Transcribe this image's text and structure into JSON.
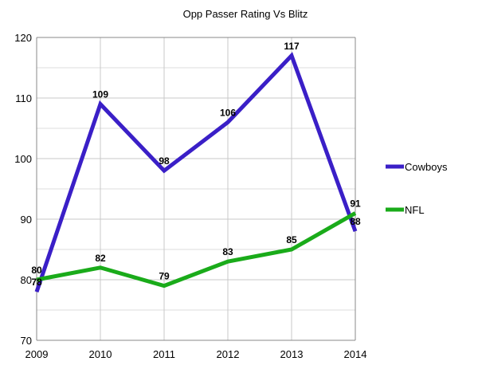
{
  "chart_data": {
    "type": "line",
    "title": "Opp Passer Rating Vs Blitz",
    "xlabel": "",
    "ylabel": "",
    "categories": [
      "2009",
      "2010",
      "2011",
      "2012",
      "2013",
      "2014"
    ],
    "ylim": [
      70,
      120
    ],
    "yticks": [
      70,
      80,
      90,
      100,
      110,
      120
    ],
    "grid": true,
    "legend_position": "right",
    "series": [
      {
        "name": "Cowboys",
        "color": "#3a1fc7",
        "values": [
          78,
          109,
          98,
          106,
          117,
          88
        ]
      },
      {
        "name": "NFL",
        "color": "#1aab1a",
        "values": [
          80,
          82,
          79,
          83,
          85,
          91
        ]
      }
    ]
  }
}
